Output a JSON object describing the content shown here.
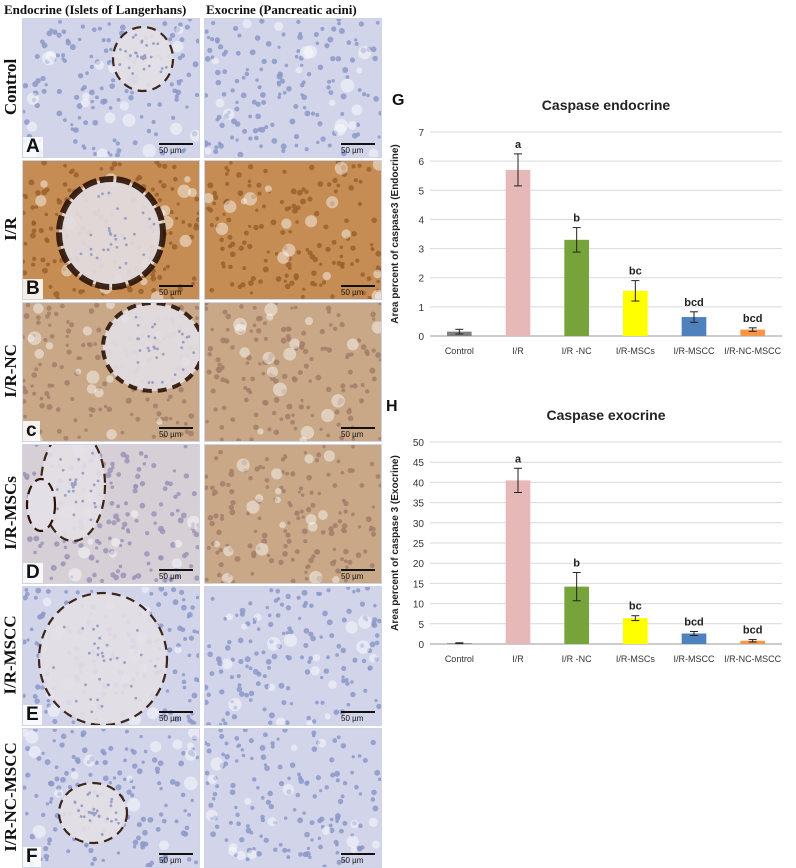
{
  "figure": {
    "column_headers": [
      "Endocrine (Islets of Langerhans)",
      "Exocrine (Pancreatic acini)"
    ],
    "rows": [
      {
        "label": "Control",
        "letter": "A",
        "stain": "low"
      },
      {
        "label": "I/R",
        "letter": "B",
        "stain": "high"
      },
      {
        "label": "I/R-NC",
        "letter": "c",
        "stain": "mid"
      },
      {
        "label": "I/R-MSCs",
        "letter": "D",
        "stain": "lowmid"
      },
      {
        "label": "I/R-MSCC",
        "letter": "E",
        "stain": "low"
      },
      {
        "label": "I/R-NC-MSCC",
        "letter": "F",
        "stain": "low"
      }
    ],
    "scale_bar": "50 µm",
    "colors": {
      "hematoxylin": "#8f9ccc",
      "dab": "#8a4a1c",
      "dab_dark": "#2a1206"
    }
  },
  "chart_data": [
    {
      "letter": "G",
      "type": "bar",
      "title": "Caspase endocrine",
      "ylabel": "Area percent of caspase3 (Endocrine)",
      "categories": [
        "Control",
        "I/R",
        "I/R -NC",
        "I/R-MSCs",
        "I/R-MSCC",
        "I/R-NC-MSCC"
      ],
      "values": [
        0.15,
        5.7,
        3.3,
        1.55,
        0.65,
        0.22
      ],
      "errors": [
        0.08,
        0.55,
        0.42,
        0.35,
        0.18,
        0.06
      ],
      "labels": [
        "",
        "a",
        "b",
        "bc",
        "bcd",
        "bcd"
      ],
      "colors": [
        "#7f7f7f",
        "#e6b9b8",
        "#77a33b",
        "#ffff00",
        "#4f81bd",
        "#f79646"
      ],
      "ylim": [
        0,
        7
      ],
      "yticks": [
        0,
        1,
        2,
        3,
        4,
        5,
        6,
        7
      ],
      "grid": true
    },
    {
      "letter": "H",
      "type": "bar",
      "title": "Caspase exocrine",
      "ylabel": "Area percent of caspase 3 (Exocrine)",
      "categories": [
        "Control",
        "I/R",
        "I/R -NC",
        "I/R-MSCs",
        "I/R-MSCC",
        "I/R-NC-MSCC"
      ],
      "values": [
        0.2,
        40.5,
        14.2,
        6.4,
        2.6,
        0.8
      ],
      "errors": [
        0.1,
        3.0,
        3.5,
        0.6,
        0.5,
        0.3
      ],
      "labels": [
        "",
        "a",
        "b",
        "bc",
        "bcd",
        "bcd"
      ],
      "colors": [
        "#7f7f7f",
        "#e6b9b8",
        "#77a33b",
        "#ffff00",
        "#4f81bd",
        "#f79646"
      ],
      "ylim": [
        0,
        50
      ],
      "yticks": [
        0,
        5,
        10,
        15,
        20,
        25,
        30,
        35,
        40,
        45,
        50
      ],
      "grid": true
    }
  ]
}
